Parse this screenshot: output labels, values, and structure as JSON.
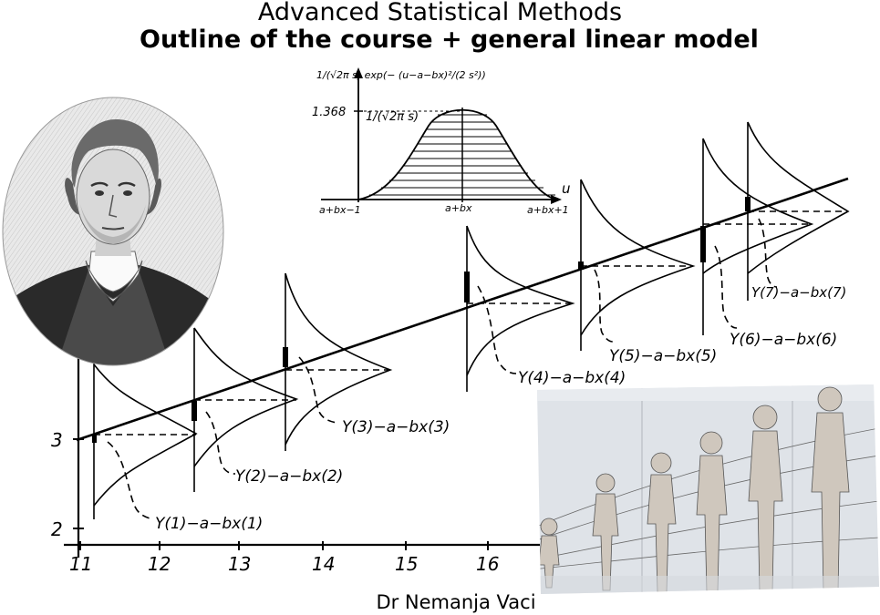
{
  "header": {
    "title": "Advanced Statistical Methods",
    "subtitle": "Outline of the course + general linear model"
  },
  "footer": {
    "author": "Dr Nemanja Vaci"
  },
  "diagram": {
    "inset": {
      "density_formula": "1/(√2π s) exp(− (u−a−bx)²/(2 s²))",
      "peak_value": "1.368",
      "peak_formula": "1/(√2π s)",
      "axis_variable": "u",
      "x_left": "a+bx−1",
      "x_center": "a+bx",
      "x_right": "a+bx+1"
    },
    "y_ticks": [
      "2",
      "3"
    ],
    "x_ticks": [
      "11",
      "12",
      "13",
      "14",
      "15",
      "16"
    ],
    "residual_labels": [
      "Y(1)−a−bx(1)",
      "Y(2)−a−bx(2)",
      "Y(3)−a−bx(3)",
      "Y(4)−a−bx(4)",
      "Y(5)−a−bx(5)",
      "Y(6)−a−bx(6)",
      "Y(7)−a−bx(7)"
    ]
  },
  "images": {
    "portrait": "engraved-portrait-of-man",
    "photo": "growth-chart-children-figures"
  }
}
